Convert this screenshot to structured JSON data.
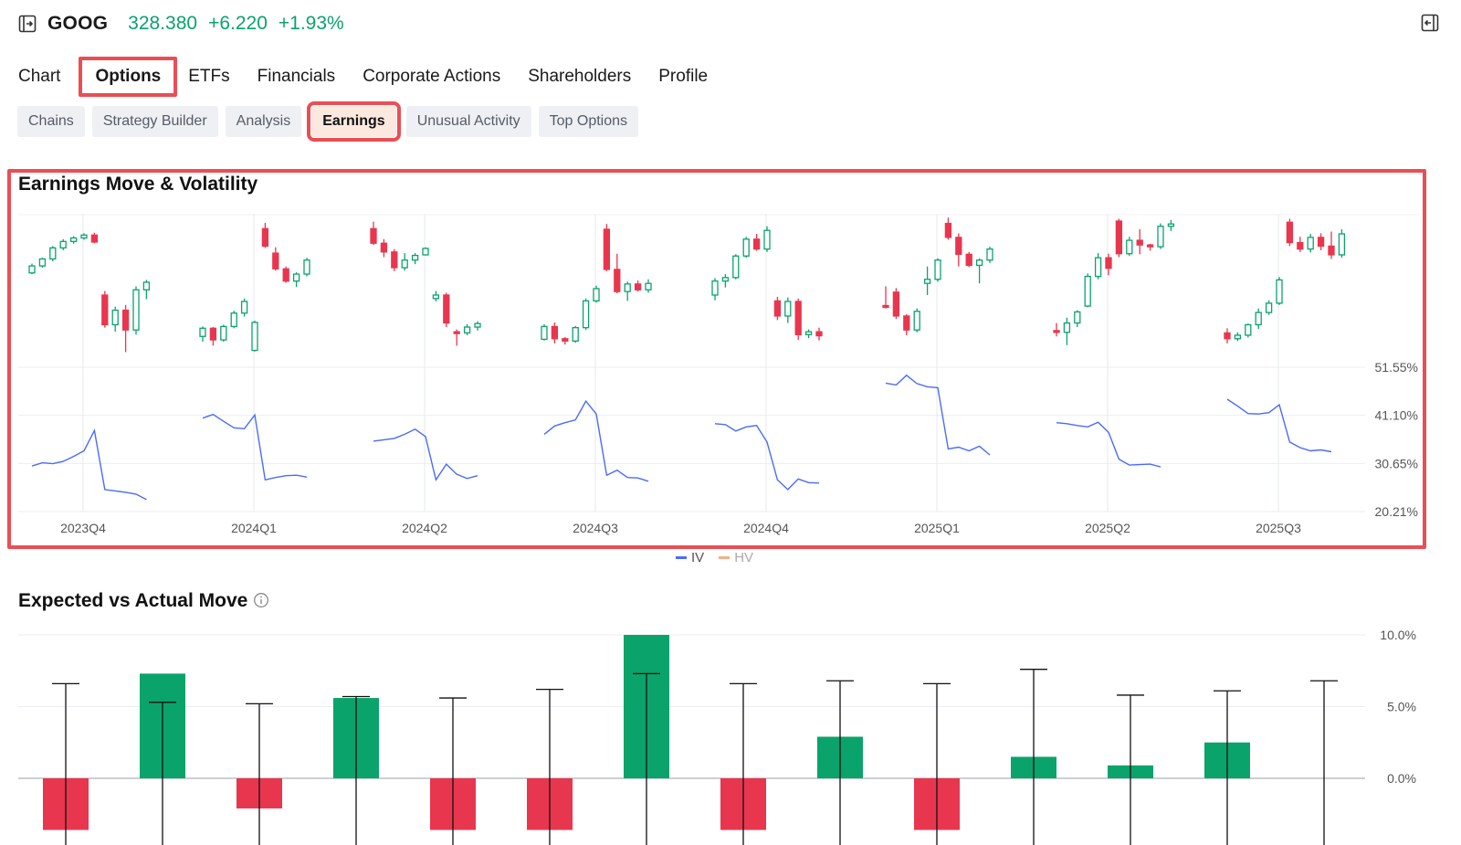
{
  "header": {
    "ticker": "GOOG",
    "price": "328.380",
    "change": "+6.220",
    "change_pct": "+1.93%",
    "price_color": "#0aa36b",
    "icons": {
      "left": "panel-expand-icon",
      "right": "panel-collapse-icon"
    }
  },
  "tabs": [
    {
      "label": "Chart",
      "active": false
    },
    {
      "label": "Options",
      "active": true
    },
    {
      "label": "ETFs",
      "active": false
    },
    {
      "label": "Financials",
      "active": false
    },
    {
      "label": "Corporate Actions",
      "active": false
    },
    {
      "label": "Shareholders",
      "active": false
    },
    {
      "label": "Profile",
      "active": false
    }
  ],
  "subtabs": [
    {
      "label": "Chains",
      "active": false
    },
    {
      "label": "Strategy Builder",
      "active": false
    },
    {
      "label": "Analysis",
      "active": false
    },
    {
      "label": "Earnings",
      "active": true
    },
    {
      "label": "Unusual Activity",
      "active": false
    },
    {
      "label": "Top Options",
      "active": false
    }
  ],
  "earnings_move": {
    "title": "Earnings Move & Volatility",
    "legend": [
      {
        "name": "IV",
        "color": "#4a6cf7"
      },
      {
        "name": "HV",
        "color": "#f4b183"
      }
    ],
    "chart_data": {
      "type": "line",
      "title": "Earnings Move & Volatility",
      "categories": [
        "2023Q4",
        "2024Q1",
        "2024Q2",
        "2024Q3",
        "2024Q4",
        "2025Q1",
        "2025Q2",
        "2025Q3"
      ],
      "y_ticks": [
        "51.55%",
        "41.10%",
        "30.65%",
        "20.21%"
      ],
      "y_range": [
        20.21,
        51.55
      ],
      "up_color": "#0aa36b",
      "down_color": "#e8364f",
      "candles": [
        [
          [
            98,
            99.6,
            97.8,
            99.2
          ],
          [
            99.2,
            100.6,
            98.9,
            100.4
          ],
          [
            100.4,
            102.6,
            100,
            102.3
          ],
          [
            102.3,
            103.8,
            101.9,
            103.4
          ],
          [
            103.4,
            104.3,
            103,
            104
          ],
          [
            104,
            104.8,
            103.7,
            104.5
          ],
          [
            104.5,
            104.9,
            103.1,
            103.3
          ],
          [
            94.2,
            94.9,
            88.6,
            89.1
          ],
          [
            89.1,
            92.2,
            87.9,
            91.6
          ],
          [
            91.6,
            92.5,
            84.4,
            88.2
          ],
          [
            88.2,
            95.7,
            87.4,
            95.1
          ],
          [
            95.1,
            96.8,
            93.5,
            96.4
          ]
        ],
        [
          [
            87.1,
            88.8,
            86.2,
            88.5
          ],
          [
            88.5,
            88.7,
            85.5,
            86.5
          ],
          [
            86.5,
            89.1,
            86.2,
            88.8
          ],
          [
            88.8,
            91.5,
            88.5,
            91.1
          ],
          [
            91.1,
            93.6,
            90.5,
            93.1
          ],
          [
            84.7,
            89.8,
            84.5,
            89.5
          ],
          [
            105.6,
            106.6,
            102.3,
            102.6
          ],
          [
            101.4,
            102.4,
            98.4,
            98.7
          ],
          [
            98.7,
            99.1,
            96.3,
            96.6
          ],
          [
            96.6,
            98.1,
            95.6,
            97.8
          ],
          [
            97.8,
            100.6,
            97.4,
            100.2
          ]
        ],
        [
          [
            105.6,
            106.8,
            102.8,
            103.1
          ],
          [
            103.1,
            103.8,
            100.7,
            101.6
          ],
          [
            101.6,
            102.1,
            98.3,
            98.9
          ],
          [
            98.9,
            101.4,
            98.4,
            100.2
          ],
          [
            100.2,
            101.4,
            99.5,
            101
          ],
          [
            101.1,
            102.4,
            101,
            102.2
          ],
          [
            93.6,
            94.9,
            93.1,
            94.2
          ],
          [
            94.2,
            94.6,
            88.7,
            89.4
          ],
          [
            87.9,
            88.3,
            85.5,
            87.7
          ],
          [
            87.7,
            89.2,
            87.3,
            88.7
          ],
          [
            88.7,
            89.7,
            88.1,
            89.3
          ]
        ],
        [
          [
            86.6,
            89.2,
            86.4,
            88.8
          ],
          [
            88.8,
            89.5,
            85.9,
            86.7
          ],
          [
            86.7,
            87,
            85.7,
            86.3
          ],
          [
            86.3,
            88.9,
            86,
            88.6
          ],
          [
            88.6,
            93.6,
            88.2,
            93.2
          ],
          [
            93.2,
            95.8,
            92.9,
            95.3
          ],
          [
            105.5,
            106.4,
            98.3,
            98.6
          ],
          [
            98.6,
            101.3,
            94.5,
            94.8
          ],
          [
            94.8,
            96.5,
            93.2,
            96.1
          ],
          [
            96.1,
            96.7,
            94.8,
            95.1
          ],
          [
            95.1,
            96.9,
            94.6,
            96.2
          ]
        ],
        [
          [
            94.2,
            97.1,
            93.3,
            96.6
          ],
          [
            96.6,
            97.8,
            95.5,
            97.2
          ],
          [
            97.2,
            101.2,
            96.9,
            100.9
          ],
          [
            100.9,
            104.2,
            100.6,
            103.8
          ],
          [
            103.8,
            104.7,
            101.8,
            102.1
          ],
          [
            102.1,
            106,
            101.6,
            105.3
          ],
          [
            93.2,
            93.9,
            89.9,
            90.6
          ],
          [
            90.6,
            93.8,
            89.4,
            93.1
          ],
          [
            93.1,
            93.6,
            86.5,
            87.4
          ],
          [
            87.4,
            88.3,
            86.8,
            87.9
          ],
          [
            87.9,
            88.6,
            86.4,
            87.2
          ]
        ],
        [
          [
            92.4,
            95.7,
            91.9,
            92.3
          ],
          [
            94.7,
            95.4,
            90.1,
            90.6
          ],
          [
            90.6,
            90.9,
            87.3,
            88.2
          ],
          [
            88.2,
            91.9,
            87.8,
            91.4
          ],
          [
            96.2,
            99.1,
            94.2,
            96.9
          ],
          [
            96.9,
            100.5,
            96.5,
            100.2
          ],
          [
            106.5,
            107.5,
            103.7,
            104.1
          ],
          [
            104.1,
            104.8,
            99.1,
            101.2
          ],
          [
            101.2,
            101.6,
            99,
            99.3
          ],
          [
            99.3,
            100.5,
            96.2,
            100.2
          ],
          [
            100.2,
            102.5,
            99.7,
            102.1
          ]
        ],
        [
          [
            88.1,
            89.4,
            87.1,
            87.8
          ],
          [
            87.8,
            90.3,
            85.6,
            89.4
          ],
          [
            89.4,
            91.6,
            88.7,
            91.3
          ],
          [
            92.3,
            97.9,
            92.1,
            97.4
          ],
          [
            97.4,
            101.4,
            96.9,
            100.6
          ],
          [
            100.6,
            101.3,
            97.6,
            98.8
          ],
          [
            106.9,
            107.3,
            100.7,
            101.3
          ],
          [
            101.3,
            104.2,
            100.9,
            103.6
          ],
          [
            103.6,
            105.5,
            101.2,
            102.8
          ],
          [
            102.8,
            103,
            101.8,
            102.5
          ],
          [
            102.5,
            106.5,
            102.1,
            106
          ],
          [
            106,
            107.1,
            105.2,
            106.4
          ]
        ],
        [
          [
            87.7,
            88.5,
            85.9,
            86.7
          ],
          [
            86.7,
            87.8,
            86.3,
            87.3
          ],
          [
            87.3,
            89.3,
            86.9,
            89.1
          ],
          [
            89.1,
            91.9,
            88.4,
            91.2
          ],
          [
            91.2,
            93.3,
            90.8,
            92.8
          ],
          [
            92.8,
            97.3,
            92.5,
            96.8
          ],
          [
            106.7,
            107.3,
            102.6,
            103.2
          ],
          [
            103.2,
            104.2,
            101.6,
            102.1
          ],
          [
            102.1,
            104.7,
            101.5,
            104.1
          ],
          [
            104.1,
            104.8,
            101.9,
            102.6
          ],
          [
            102.6,
            105.1,
            100.4,
            101.1
          ],
          [
            101.1,
            105.5,
            100.6,
            104.7
          ]
        ]
      ],
      "series": [
        {
          "name": "IV",
          "color": "#4a6cf7",
          "values": [
            [
              30.1,
              30.8,
              30.6,
              31.1,
              32.2,
              33.4,
              37.8,
              25.0,
              24.7,
              24.4,
              24.0,
              22.8
            ],
            [
              40.5,
              41.3,
              39.8,
              38.4,
              38.2,
              41.2,
              27.1,
              27.6,
              28.0,
              28.1,
              27.7
            ],
            [
              35.5,
              35.8,
              36.1,
              37.0,
              38.1,
              36.5,
              27.1,
              30.5,
              28.3,
              27.4,
              28.0
            ],
            [
              37.0,
              38.8,
              39.5,
              40.1,
              44.2,
              41.4,
              28.1,
              29.2,
              27.6,
              27.5,
              26.8
            ],
            [
              39.3,
              39.1,
              37.7,
              38.6,
              38.9,
              35.3,
              27.1,
              25.0,
              27.3,
              26.5,
              26.4
            ],
            [
              48.1,
              47.7,
              49.8,
              48.0,
              47.3,
              47.1,
              33.8,
              34.2,
              33.4,
              34.4,
              32.5
            ],
            [
              39.5,
              39.3,
              38.9,
              38.6,
              39.6,
              37.4,
              31.6,
              30.3,
              30.4,
              30.5,
              29.9
            ],
            [
              44.6,
              43.1,
              41.5,
              41.4,
              41.7,
              43.4,
              35.3,
              34.1,
              33.4,
              33.6,
              33.2
            ]
          ]
        }
      ]
    }
  },
  "expected_vs_actual": {
    "title": "Expected vs Actual Move",
    "info_icon": "info-icon",
    "chart_data": {
      "type": "bar",
      "title": "Expected vs Actual Move",
      "y_ticks": [
        "10.0%",
        "5.0%",
        "0.0%"
      ],
      "ylim": [
        -3.5,
        10
      ],
      "up_color": "#0aa36b",
      "down_color": "#e8364f",
      "actual": [
        -3.6,
        null,
        7.3,
        null,
        -2.1,
        null,
        5.6,
        null,
        -3.6,
        null,
        -3.6,
        null,
        10.0,
        null,
        -3.6,
        null,
        2.9,
        null,
        -3.6,
        null,
        1.5,
        null,
        0.9,
        null,
        2.5,
        null
      ],
      "expected": [
        6.6,
        5.3,
        5.2,
        5.7,
        5.6,
        6.2,
        7.3,
        6.6,
        6.8,
        6.6,
        7.6,
        5.8,
        6.1,
        6.8
      ],
      "bars": [
        -3.6,
        7.3,
        -2.1,
        5.6,
        -3.6,
        -3.6,
        10.0,
        -3.6,
        2.9,
        -3.6,
        1.5,
        0.9,
        2.5
      ]
    }
  }
}
